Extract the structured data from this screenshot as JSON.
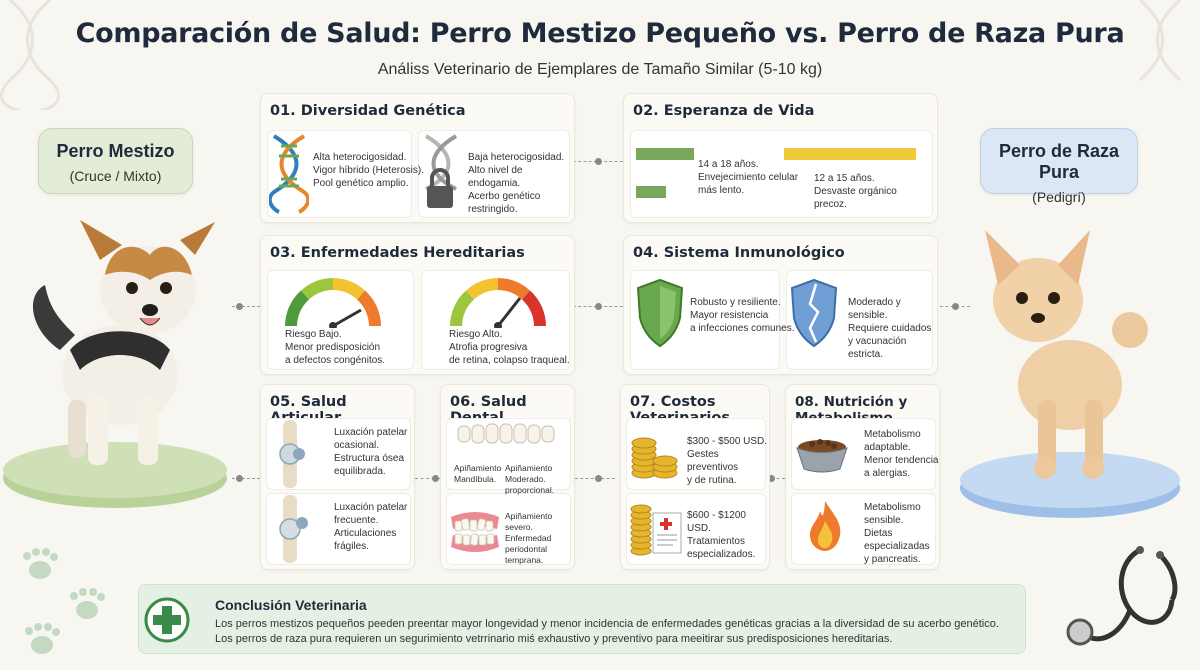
{
  "title": "Comparación de Salud: Perro Mestizo Pequeño vs. Perro de Raza Pura",
  "subtitle": "Análiss Veterinario de Ejemplares de Tamaño Similar (5-10 kg)",
  "mixed": {
    "title": "Perro Mestizo",
    "subtitle": "(Cruce / Mixto)"
  },
  "pure": {
    "title": "Perro de Raza Pura",
    "subtitle": "(Pedigrí)"
  },
  "sections": {
    "genetics": {
      "title": "01. Diversidad Genética",
      "mixed": [
        "Alta heterocigosidad.",
        "Vigor híbrido (Heterosis).",
        "Pool genético amplio."
      ],
      "pure": [
        "Baja heterocigosidad.",
        "Alto nivel de endogamia.",
        "Acerbo genético restringido."
      ]
    },
    "lifespan": {
      "title": "02. Esperanza de Vida",
      "mixed": [
        "14 a 18 años.",
        "Envejecimiento celular",
        "más lento."
      ],
      "pure": [
        "12 a 15 años.",
        "Desvaste orgánico",
        "precoz."
      ]
    },
    "hereditary": {
      "title": "03. Enfermedades Hereditarias",
      "mixed": [
        "Riesgo Bajo.",
        "Menor predisposición",
        "a defectos congénitos."
      ],
      "pure": [
        "Riesgo Alto.",
        "Atrofia progresiva",
        "de retina, colapso traqueal."
      ]
    },
    "immune": {
      "title": "04. Sistema Inmunológico",
      "mixed": [
        "Robusto y resiliente.",
        "Mayor resistencia",
        "a infecciones comunes."
      ],
      "pure": [
        "Moderado y sensible.",
        "Requiere cuidados",
        "y vacunación estricta."
      ]
    },
    "joint": {
      "title": "05. Salud Articular",
      "mixed": [
        "Luxación patelar",
        "ocasional.",
        "Estructura ósea",
        "equilibrada."
      ],
      "pure": [
        "Luxación patelar",
        "frecuente.",
        "Articulaciones",
        "frágiles."
      ]
    },
    "dental": {
      "title": "06. Salud Dental",
      "mixed_left": [
        "Apiñamiento",
        "",
        "",
        "Mandíbula."
      ],
      "mixed_right": [
        "Apiñamiento",
        "Moderado.",
        "proporcional."
      ],
      "pure": [
        "Apiñamiento",
        "severo.",
        "Enfermedad",
        "periodontal temprana."
      ]
    },
    "costs": {
      "title": "07. Costos Veterinarios",
      "mixed": [
        "$300 - $500 USD.",
        "Gestes preventivos",
        "y de rutina."
      ],
      "pure": [
        "$600 - $1200 USD.",
        "Tratamientos",
        "especializados."
      ]
    },
    "nutrition": {
      "title": "08. Nutrición y Metabolismo",
      "mixed": [
        "Metabolismo",
        "adaptable.",
        "Menor tendencia",
        "a alergias."
      ],
      "pure": [
        "Metabolismo",
        "sensible.",
        "Dietas especializadas",
        "y pancreatis."
      ]
    }
  },
  "conclusion": {
    "title": "Conclusión Veterinaria",
    "line1": "Los perros mestizos pequeños peeden preentar mayor longevidad y menor incidencia de enfermedades genéticas gracias a la diversidad de su acerbo genético.",
    "line2": "Los perros de raza pura requieren un segurimiento vetrrinario miś exhaustivo y preventivo para meeitirar sus predisposiciones hereditarias."
  },
  "gauges": {
    "mixed_risk_level": 0.75,
    "pure_risk_level": 0.9
  },
  "lifespan_bars": {
    "mixed_min_years": 14,
    "mixed_max_years": 18,
    "pure_min_years": 12,
    "pure_max_years": 15
  },
  "colors": {
    "mixed_accent": "#7aa85a",
    "pure_accent": "#6b9bd1",
    "lifespan_pure": "#f0c93a",
    "shield_green": "#6aa84f",
    "shield_blue": "#6f9fd4"
  }
}
